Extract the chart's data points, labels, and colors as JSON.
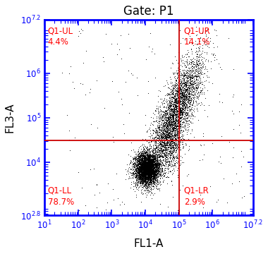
{
  "title": "Gate: P1",
  "xlabel": "FL1-A",
  "ylabel": "FL3-A",
  "xlim_log": [
    1,
    7.2
  ],
  "ylim_log": [
    2.8,
    7.2
  ],
  "gate_x_log": 5.0,
  "gate_y_log": 4.48,
  "quadrant_labels": {
    "UL": "Q1-UL\n4.4%",
    "UR": "Q1-UR\n14.1%",
    "LL": "Q1-LL\n78.7%",
    "LR": "Q1-LR\n2.9%"
  },
  "label_color": "#ff0000",
  "border_color": "#0000ff",
  "gate_color": "#cc0000",
  "background_color": "#ffffff",
  "seed": 7
}
